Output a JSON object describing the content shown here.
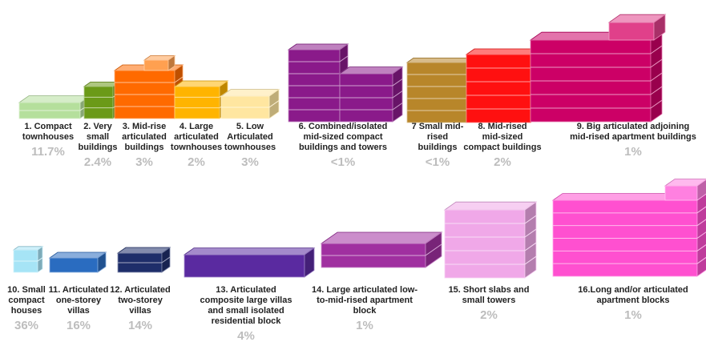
{
  "items": [
    {
      "label": [
        "1. Compact",
        "townhouses"
      ],
      "share": "11.7%"
    },
    {
      "label": [
        "2. Very",
        "small",
        "buildings"
      ],
      "share": "2.4%"
    },
    {
      "label": [
        "3. Mid-rise",
        "articulated",
        "buildings"
      ],
      "share": "3%"
    },
    {
      "label": [
        "4. Large",
        "articulated",
        "townhouses"
      ],
      "share": "2%"
    },
    {
      "label": [
        "5. Low",
        "Articulated",
        "townhouses"
      ],
      "share": "3%"
    },
    {
      "label": [
        "6. Combined/isolated",
        "mid-sized compact",
        "buildings  and towers"
      ],
      "share": "<1%"
    },
    {
      "label": [
        "7 Small mid-",
        "rised",
        "buildings"
      ],
      "share": "<1%"
    },
    {
      "label": [
        "8. Mid-rised",
        "mid-sized",
        "compact buildings"
      ],
      "share": "2%"
    },
    {
      "label": [
        "9. Big articulated adjoining",
        "mid-rised apartment buildings"
      ],
      "share": "1%"
    },
    {
      "label": [
        "10. Small",
        "compact",
        "houses"
      ],
      "share": "36%"
    },
    {
      "label": [
        "11. Articulated",
        "one-storey",
        "villas"
      ],
      "share": "16%"
    },
    {
      "label": [
        "12. Articulated",
        "two-storey",
        "villas"
      ],
      "share": "14%"
    },
    {
      "label": [
        "13. Articulated",
        "composite large villas",
        "and small isolated",
        "residential block"
      ],
      "share": "4%"
    },
    {
      "label": [
        "14. Large articulated low-",
        "to-mid-rised apartment",
        "block"
      ],
      "share": "1%"
    },
    {
      "label": [
        "15. Short slabs and",
        "small towers"
      ],
      "share": "2%"
    },
    {
      "label": [
        "16.Long and/or articulated",
        "apartment blocks"
      ],
      "share": "1%"
    }
  ]
}
